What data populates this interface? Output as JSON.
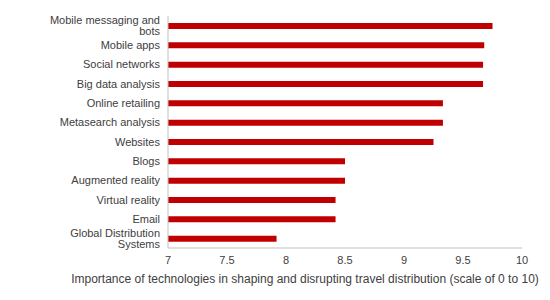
{
  "chart_data": {
    "type": "bar",
    "orientation": "horizontal",
    "categories": [
      "Mobile messaging and bots",
      "Mobile apps",
      "Social networks",
      "Big data analysis",
      "Online retailing",
      "Metasearch analysis",
      "Websites",
      "Blogs",
      "Augmented reality",
      "Virtual reality",
      "Email",
      "Global Distribution Systems"
    ],
    "values": [
      9.75,
      9.68,
      9.67,
      9.67,
      9.33,
      9.33,
      9.25,
      8.5,
      8.5,
      8.42,
      8.42,
      7.92
    ],
    "color": "#c00000",
    "x_label": "Importance of technologies in shaping and disrupting travel distribution (scale of 0 to 10)",
    "xlim": [
      7,
      10
    ],
    "xticks": [
      7,
      7.5,
      8,
      8.5,
      9,
      9.5,
      10
    ],
    "grid": false
  }
}
